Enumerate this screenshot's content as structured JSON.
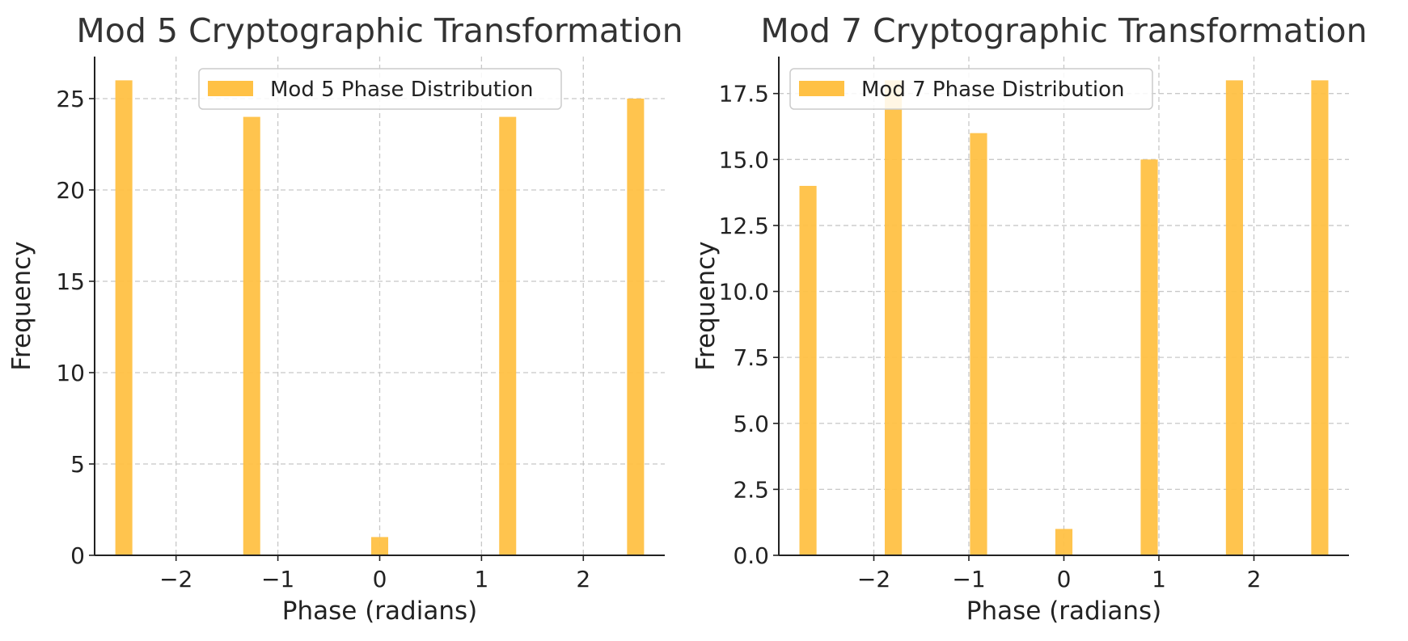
{
  "chart_data": [
    {
      "type": "bar",
      "title": "Mod 5 Cryptographic Transformation",
      "xlabel": "Phase (radians)",
      "ylabel": "Frequency",
      "xlim": [
        -2.8,
        2.8
      ],
      "ylim": [
        0,
        27.3
      ],
      "xticks": [
        -2,
        -1,
        0,
        1,
        2
      ],
      "xtick_labels": [
        "−2",
        "−1",
        "0",
        "1",
        "2"
      ],
      "yticks": [
        0,
        5,
        10,
        15,
        20,
        25
      ],
      "ytick_labels": [
        "0",
        "5",
        "10",
        "15",
        "20",
        "25"
      ],
      "bar_width": 0.167,
      "x": [
        -2.513,
        -1.257,
        0.0,
        1.257,
        2.513
      ],
      "values": [
        26,
        24,
        1,
        24,
        25
      ],
      "series": [
        {
          "name": "Mod 5 Phase Distribution",
          "color": "#FFC145"
        }
      ],
      "legend_position": "upper center",
      "grid": true
    },
    {
      "type": "bar",
      "title": "Mod 7 Cryptographic Transformation",
      "xlabel": "Phase (radians)",
      "ylabel": "Frequency",
      "xlim": [
        -3.0,
        3.0
      ],
      "ylim": [
        0,
        18.9
      ],
      "xticks": [
        -2,
        -1,
        0,
        1,
        2
      ],
      "xtick_labels": [
        "−2",
        "−1",
        "0",
        "1",
        "2"
      ],
      "yticks": [
        0,
        2.5,
        5.0,
        7.5,
        10.0,
        12.5,
        15.0,
        17.5
      ],
      "ytick_labels": [
        "0.0",
        "2.5",
        "5.0",
        "7.5",
        "10.0",
        "12.5",
        "15.0",
        "17.5"
      ],
      "bar_width": 0.18,
      "x": [
        -2.693,
        -1.795,
        -0.898,
        0.0,
        0.898,
        1.795,
        2.693
      ],
      "values": [
        14,
        18,
        16,
        1,
        15,
        18,
        18
      ],
      "series": [
        {
          "name": "Mod 7 Phase Distribution",
          "color": "#FFC145"
        }
      ],
      "legend_position": "upper left",
      "grid": true
    }
  ]
}
